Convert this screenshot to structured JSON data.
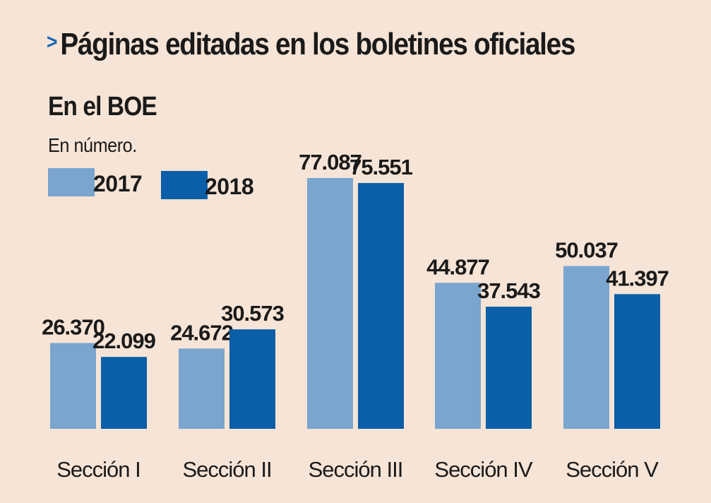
{
  "header": {
    "chevron": ">",
    "title": "Páginas editadas en los boletines oficiales",
    "subtitle": "En el BOE",
    "unit_note": "En número."
  },
  "legend": [
    {
      "label": "2017",
      "color": "#7aa5cf"
    },
    {
      "label": "2018",
      "color": "#0b5ea8"
    }
  ],
  "chart_data": {
    "type": "bar",
    "title": "Páginas editadas en los boletines oficiales",
    "subtitle": "En el BOE",
    "ylabel": "En número.",
    "xlabel": "",
    "categories": [
      "Sección I",
      "Sección II",
      "Sección III",
      "Sección IV",
      "Sección V"
    ],
    "series": [
      {
        "name": "2017",
        "values": [
          26370,
          24672,
          77087,
          44877,
          50037
        ],
        "labels": [
          "26.370",
          "24.672",
          "77.087",
          "44.877",
          "50.037"
        ],
        "color": "#7aa5cf"
      },
      {
        "name": "2018",
        "values": [
          22099,
          30573,
          75551,
          37543,
          41397
        ],
        "labels": [
          "22.099",
          "30.573",
          "75.551",
          "37.543",
          "41.397"
        ],
        "color": "#0b5ea8"
      }
    ],
    "ylim": [
      0,
      77087
    ],
    "grid": false,
    "legend_position": "top-left"
  }
}
